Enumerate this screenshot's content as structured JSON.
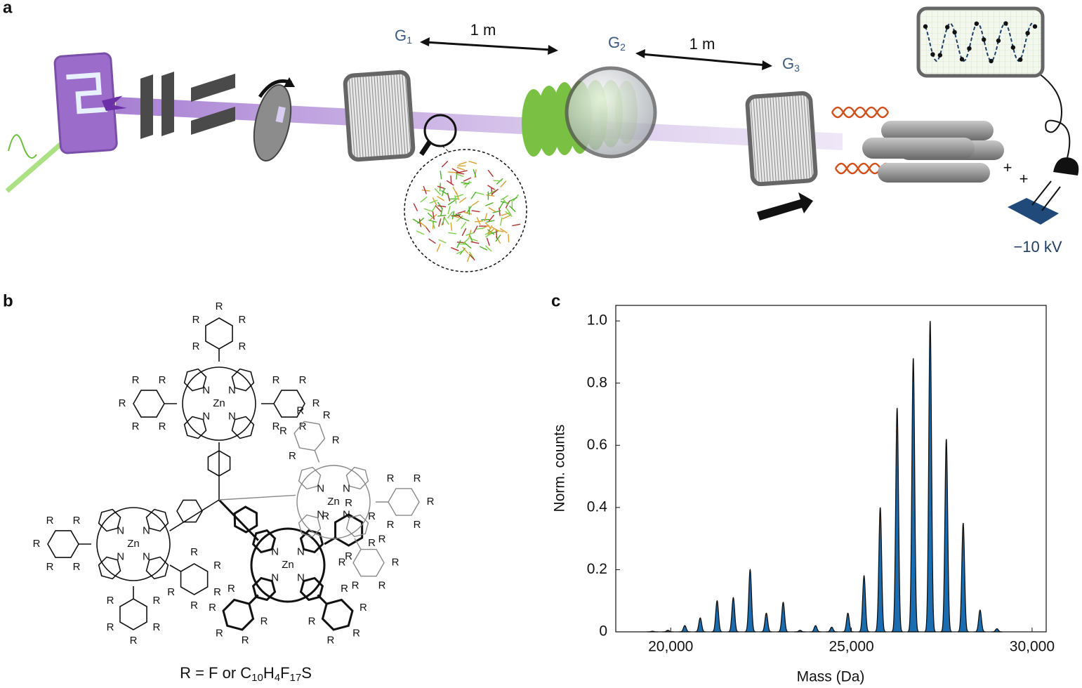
{
  "panels": {
    "a": "a",
    "b": "b",
    "c": "c"
  },
  "setup": {
    "g1": {
      "main": "G",
      "sub": "1"
    },
    "distance_1": "1 m",
    "g2": {
      "main": "G",
      "sub": "2"
    },
    "distance_2": "1 m",
    "g3": {
      "main": "G",
      "sub": "3"
    },
    "plus_1": "+",
    "plus_2": "+",
    "voltage": "−10 kV"
  },
  "molecule": {
    "porphyrins": [
      {
        "metal": "Zn",
        "nitrogens": [
          "N",
          "N",
          "N",
          "N"
        ],
        "aryl_groups": [
          [
            "R",
            "R",
            "R",
            "R",
            "R"
          ],
          [
            "R",
            "R",
            "R",
            "R",
            "R"
          ],
          [
            "R",
            "R",
            "R",
            "R",
            "R"
          ]
        ]
      },
      {
        "metal": "Zn",
        "nitrogens": [
          "N",
          "N",
          "N",
          "N"
        ],
        "aryl_groups": [
          [
            "R",
            "R",
            "R",
            "R",
            "R"
          ],
          [
            "R",
            "R",
            "R",
            "R",
            "R"
          ],
          [
            "R",
            "R",
            "R",
            "R",
            "R"
          ]
        ]
      },
      {
        "metal": "Zn",
        "nitrogens": [
          "N",
          "N",
          "N",
          "N"
        ],
        "aryl_groups": [
          [
            "R",
            "R",
            "R",
            "R",
            "R"
          ],
          [
            "R",
            "R",
            "R",
            "R",
            "R"
          ],
          [
            "R",
            "R",
            "R",
            "R",
            "R"
          ]
        ]
      },
      {
        "metal": "Zn",
        "nitrogens": [
          "N",
          "N",
          "N",
          "N"
        ],
        "aryl_groups": [
          [
            "R",
            "R",
            "R",
            "R",
            "R"
          ],
          [
            "R",
            "R",
            "R",
            "R",
            "R"
          ],
          [
            "R",
            "R",
            "R",
            "R",
            "R"
          ]
        ]
      }
    ],
    "formula": [
      "R = F or C",
      "10",
      "H",
      "4",
      "F",
      "17",
      "S"
    ]
  },
  "chart_data": {
    "type": "area",
    "x_label": "Mass (Da)",
    "y_label": "Norm. counts",
    "x": [
      19494,
      19922,
      20390,
      20817,
      21284,
      21732,
      22198,
      22646,
      23113,
      23580,
      24008,
      24455,
      24903,
      25350,
      25798,
      26265,
      26712,
      27179,
      27626,
      28093,
      28560,
      29027
    ],
    "values": [
      0.002,
      0.005,
      0.02,
      0.045,
      0.1,
      0.11,
      0.2,
      0.06,
      0.095,
      0.005,
      0.02,
      0.015,
      0.06,
      0.18,
      0.4,
      0.72,
      0.88,
      1.0,
      0.62,
      0.35,
      0.07,
      0.01
    ],
    "color": "#1a6db0",
    "xlim": [
      18480,
      30390
    ],
    "ylim": [
      0,
      1.05
    ],
    "xticks": [
      {
        "value": 20000,
        "label": "20,000"
      },
      {
        "value": 25000,
        "label": "25,000"
      },
      {
        "value": 30000,
        "label": "30,000"
      }
    ],
    "yticks": [
      0,
      0.2,
      0.4,
      0.6,
      0.8,
      {
        "value": 1,
        "label": "1.0"
      }
    ]
  }
}
